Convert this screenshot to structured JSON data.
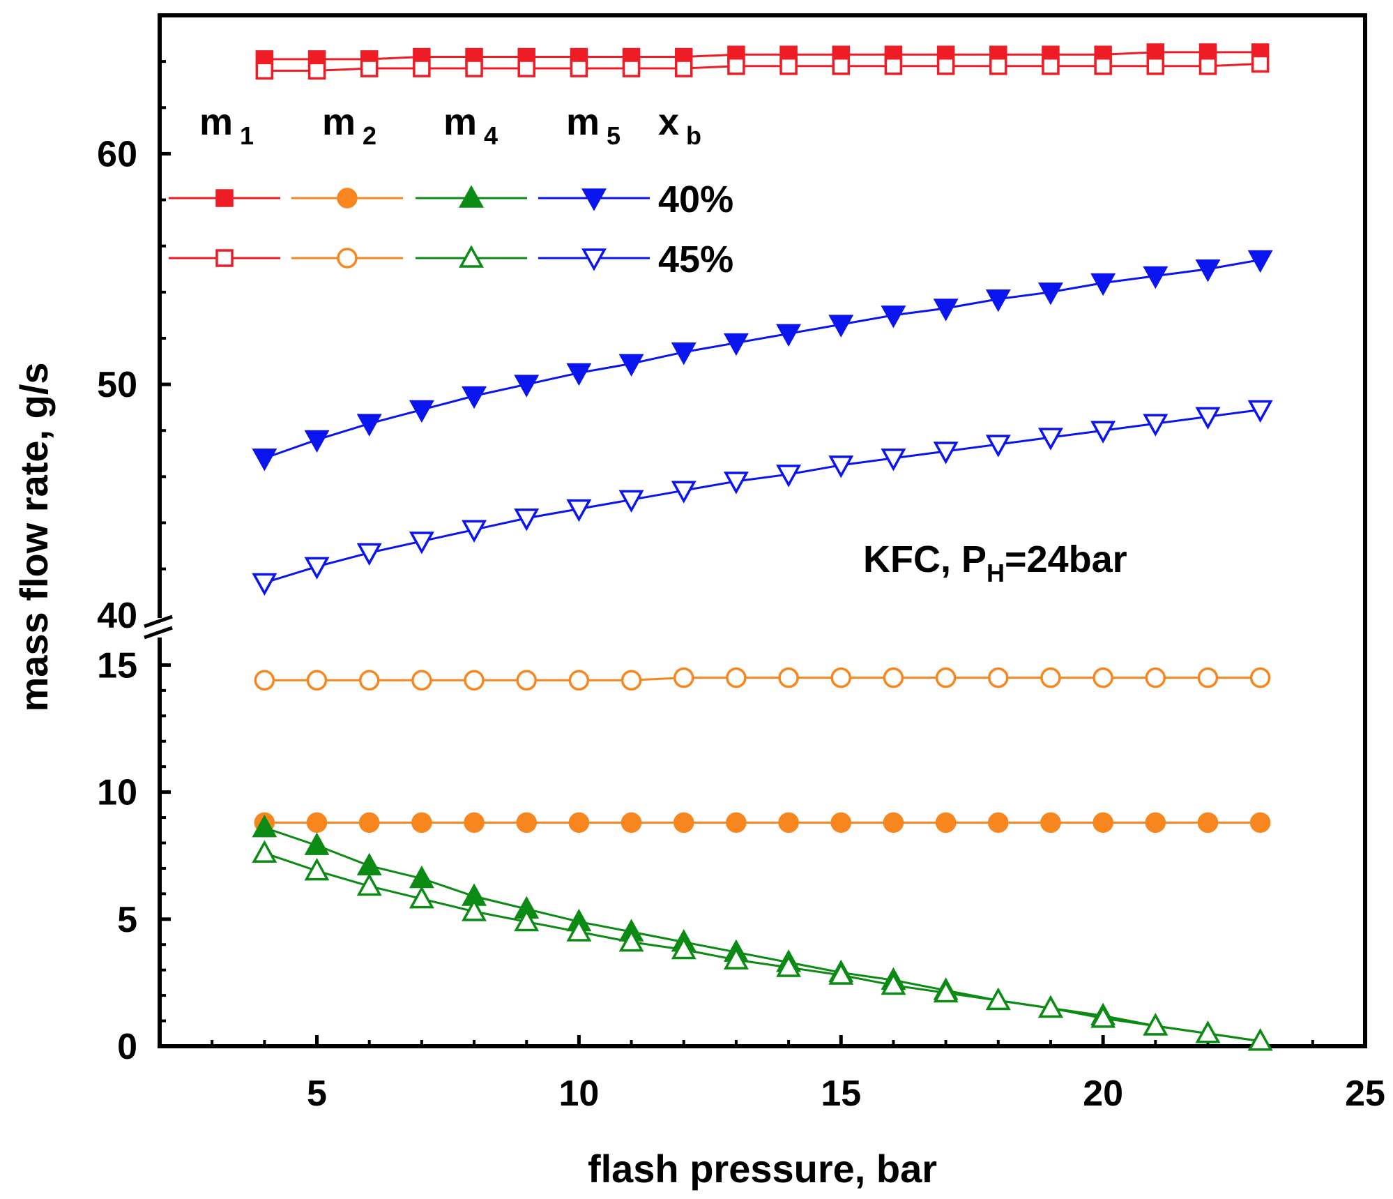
{
  "chart_data": {
    "type": "line",
    "title": "",
    "xlabel": "flash pressure, bar",
    "ylabel": "mass flow rate, g/s",
    "xlim": [
      2,
      25
    ],
    "y_segments": [
      {
        "name": "lower",
        "ylim": [
          0,
          16
        ]
      },
      {
        "name": "upper",
        "ylim": [
          39.6,
          66
        ]
      }
    ],
    "xticks": [
      "5",
      "10",
      "15",
      "20",
      "25"
    ],
    "xtick_values": [
      5,
      10,
      15,
      20,
      25
    ],
    "yticks_lower": [
      "0",
      "5",
      "10",
      "15"
    ],
    "ytick_values_lower": [
      0,
      5,
      10,
      15
    ],
    "yticks_upper": [
      "40",
      "50",
      "60"
    ],
    "ytick_values_upper": [
      40,
      50,
      60
    ],
    "annotation": {
      "text_main": "KFC, P",
      "text_sub": "H",
      "text_tail": "=24bar"
    },
    "legend": {
      "header_x_label": "x",
      "header_x_sub": "b",
      "columns": [
        {
          "label": "m",
          "sub": "1"
        },
        {
          "label": "m",
          "sub": "2"
        },
        {
          "label": "m",
          "sub": "4"
        },
        {
          "label": "m",
          "sub": "5"
        }
      ],
      "rows": [
        "40%",
        "45%"
      ]
    },
    "x": [
      4,
      5,
      6,
      7,
      8,
      9,
      10,
      11,
      12,
      13,
      14,
      15,
      16,
      17,
      18,
      19,
      20,
      21,
      22,
      23
    ],
    "series": [
      {
        "name": "m1 40%",
        "segment": "upper",
        "color": "#ee1c25",
        "marker": "square",
        "filled": true,
        "values": [
          64.1,
          64.1,
          64.1,
          64.2,
          64.2,
          64.2,
          64.2,
          64.2,
          64.2,
          64.3,
          64.3,
          64.3,
          64.3,
          64.3,
          64.3,
          64.3,
          64.3,
          64.4,
          64.4,
          64.4
        ]
      },
      {
        "name": "m1 45%",
        "segment": "upper",
        "color": "#ee1c25",
        "marker": "square",
        "filled": false,
        "values": [
          63.6,
          63.6,
          63.7,
          63.7,
          63.7,
          63.7,
          63.7,
          63.7,
          63.7,
          63.8,
          63.8,
          63.8,
          63.8,
          63.8,
          63.8,
          63.8,
          63.8,
          63.8,
          63.8,
          63.9
        ]
      },
      {
        "name": "m5 40%",
        "segment": "upper",
        "color": "#0a14ee",
        "marker": "triangle-down",
        "filled": true,
        "values": [
          46.8,
          47.6,
          48.3,
          48.9,
          49.5,
          50.0,
          50.5,
          50.9,
          51.4,
          51.8,
          52.2,
          52.6,
          53.0,
          53.3,
          53.7,
          54.0,
          54.4,
          54.7,
          55.0,
          55.4
        ]
      },
      {
        "name": "m5 45%",
        "segment": "upper",
        "color": "#0a14ee",
        "marker": "triangle-down",
        "filled": false,
        "values": [
          41.4,
          42.1,
          42.7,
          43.2,
          43.7,
          44.2,
          44.6,
          45.0,
          45.4,
          45.8,
          46.1,
          46.5,
          46.8,
          47.1,
          47.4,
          47.7,
          48.0,
          48.3,
          48.6,
          48.9
        ]
      },
      {
        "name": "m2 45%",
        "segment": "lower",
        "color": "#f7861e",
        "marker": "circle",
        "filled": false,
        "values": [
          14.4,
          14.4,
          14.4,
          14.4,
          14.4,
          14.4,
          14.4,
          14.4,
          14.5,
          14.5,
          14.5,
          14.5,
          14.5,
          14.5,
          14.5,
          14.5,
          14.5,
          14.5,
          14.5,
          14.5
        ]
      },
      {
        "name": "m2 40%",
        "segment": "lower",
        "color": "#f7861e",
        "marker": "circle",
        "filled": true,
        "values": [
          8.8,
          8.8,
          8.8,
          8.8,
          8.8,
          8.8,
          8.8,
          8.8,
          8.8,
          8.8,
          8.8,
          8.8,
          8.8,
          8.8,
          8.8,
          8.8,
          8.8,
          8.8,
          8.8,
          8.8
        ]
      },
      {
        "name": "m4 40%",
        "segment": "lower",
        "color": "#0b8a14",
        "marker": "triangle-up",
        "filled": true,
        "values": [
          8.6,
          7.9,
          7.1,
          6.6,
          5.9,
          5.4,
          4.9,
          4.5,
          4.1,
          3.7,
          3.3,
          2.9,
          2.6,
          2.2,
          1.8,
          1.5,
          1.2,
          0.8,
          0.5,
          0.2
        ]
      },
      {
        "name": "m4 45%",
        "segment": "lower",
        "color": "#0b8a14",
        "marker": "triangle-up",
        "filled": false,
        "values": [
          7.6,
          6.9,
          6.3,
          5.8,
          5.3,
          4.9,
          4.5,
          4.1,
          3.8,
          3.4,
          3.1,
          2.8,
          2.4,
          2.1,
          1.8,
          1.5,
          1.1,
          0.8,
          0.5,
          0.2
        ]
      }
    ]
  }
}
